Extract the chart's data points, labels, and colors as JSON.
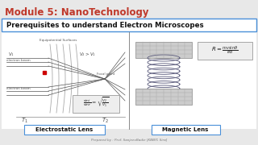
{
  "bg_color": "#e8e8e8",
  "title_text": "Module 5: NanoTechnology",
  "title_color": "#c0392b",
  "subtitle": "Prerequisites to understand Electron Microscopes",
  "subtitle_color": "#111111",
  "left_label": "Electrostatic Lens",
  "right_label": "Magnetic Lens",
  "footer": "Prepared by : Prof. SanjeevBadie [KBBIT, Sira]",
  "white": "#ffffff",
  "box_edge": "#4a90d9",
  "gray_line": "#888888",
  "content_bg": "#f5f5f5"
}
